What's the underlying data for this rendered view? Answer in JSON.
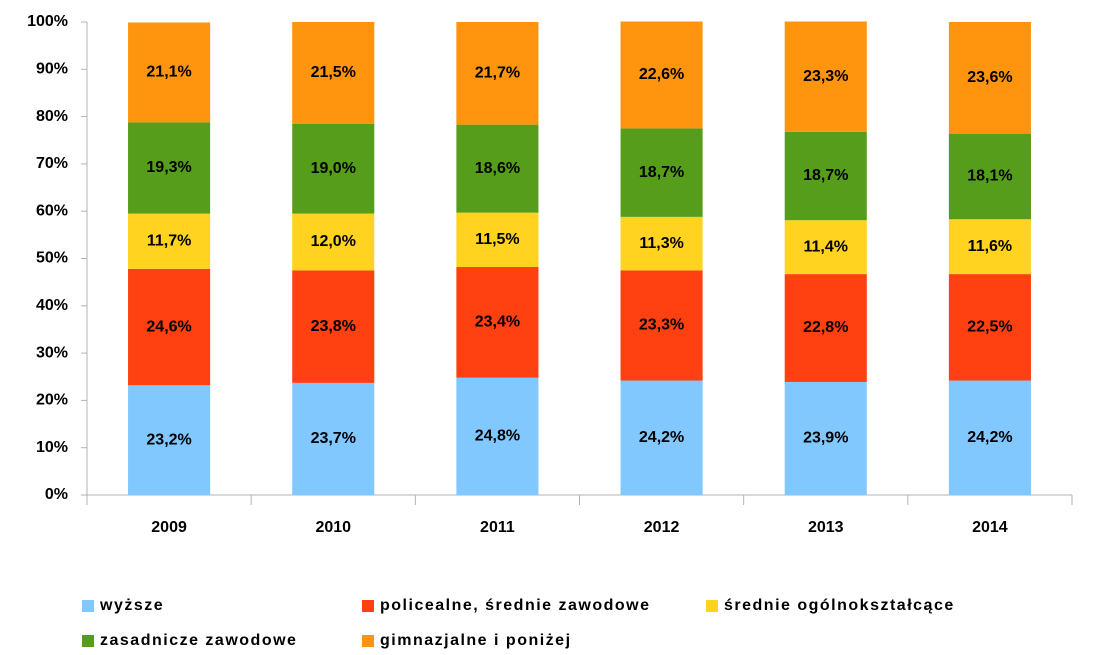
{
  "chart_data": {
    "type": "stacked_bar",
    "categories": [
      "2009",
      "2010",
      "2011",
      "2012",
      "2013",
      "2014"
    ],
    "series": [
      {
        "name": "wyższe",
        "color": "#80c8ff",
        "values": [
          23.2,
          23.7,
          24.8,
          24.2,
          23.9,
          24.2
        ],
        "value_labels": [
          "23,2%",
          "23,7%",
          "24,8%",
          "24,2%",
          "23,9%",
          "24,2%"
        ]
      },
      {
        "name": "policealne, średnie zawodowe",
        "color": "#ff4010",
        "values": [
          24.6,
          23.8,
          23.4,
          23.3,
          22.8,
          22.5
        ],
        "value_labels": [
          "24,6%",
          "23,8%",
          "23,4%",
          "23,3%",
          "22,8%",
          "22,5%"
        ]
      },
      {
        "name": "średnie ogólnokształcące",
        "color": "#ffd320",
        "values": [
          11.7,
          12.0,
          11.5,
          11.3,
          11.4,
          11.6
        ],
        "value_labels": [
          "11,7%",
          "12,0%",
          "11,5%",
          "11,3%",
          "11,4%",
          "11,6%"
        ]
      },
      {
        "name": "zasadnicze zawodowe",
        "color": "#579d1c",
        "values": [
          19.3,
          19.0,
          18.6,
          18.7,
          18.7,
          18.1
        ],
        "value_labels": [
          "19,3%",
          "19,0%",
          "18,6%",
          "18,7%",
          "18,7%",
          "18,1%"
        ]
      },
      {
        "name": "gimnazjalne i poniżej",
        "color": "#ff950e",
        "values": [
          21.1,
          21.5,
          21.7,
          22.6,
          23.3,
          23.6
        ],
        "value_labels": [
          "21,1%",
          "21,5%",
          "21,7%",
          "22,6%",
          "23,3%",
          "23,6%"
        ]
      }
    ],
    "ylim": [
      0,
      100
    ],
    "yticks": [
      {
        "value": 0,
        "label": "0%"
      },
      {
        "value": 10,
        "label": "10%"
      },
      {
        "value": 20,
        "label": "20%"
      },
      {
        "value": 30,
        "label": "30%"
      },
      {
        "value": 40,
        "label": "40%"
      },
      {
        "value": 50,
        "label": "50%"
      },
      {
        "value": 60,
        "label": "60%"
      },
      {
        "value": 70,
        "label": "70%"
      },
      {
        "value": 80,
        "label": "80%"
      },
      {
        "value": 90,
        "label": "90%"
      },
      {
        "value": 100,
        "label": "100%"
      }
    ],
    "grid": false,
    "legend": "bottom"
  }
}
